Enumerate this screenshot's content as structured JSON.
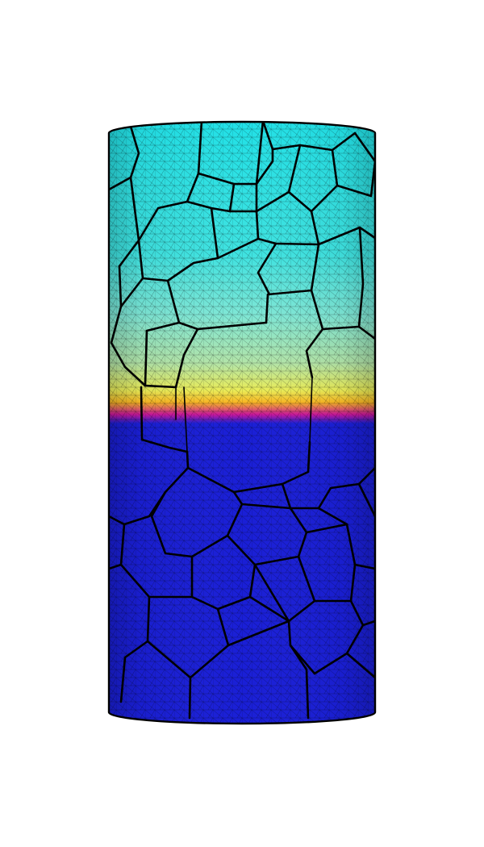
{
  "figure": {
    "description_shown": "",
    "colors": {
      "background": "#ffffff",
      "mesh_line": "#000000",
      "grain_boundary": "#000000",
      "cyan": "#22dde0",
      "light_cyan": "#7fe8d6",
      "pale_green": "#b6e3a4",
      "yellow": "#f4ee3a",
      "orange": "#f7a11e",
      "magenta": "#c0199a",
      "blue": "#1a1fd6",
      "deep_blue": "#1414c8"
    },
    "colormap_stops": [
      {
        "color": "#21e0e6",
        "level": 1.0
      },
      {
        "color": "#6fe5d8",
        "level": 0.75
      },
      {
        "color": "#b5e3a6",
        "level": 0.58
      },
      {
        "color": "#f1ee3e",
        "level": 0.5
      },
      {
        "color": "#f6a41e",
        "level": 0.46
      },
      {
        "color": "#c8159a",
        "level": 0.43
      },
      {
        "color": "#1a1fd6",
        "level": 0.4
      }
    ]
  }
}
